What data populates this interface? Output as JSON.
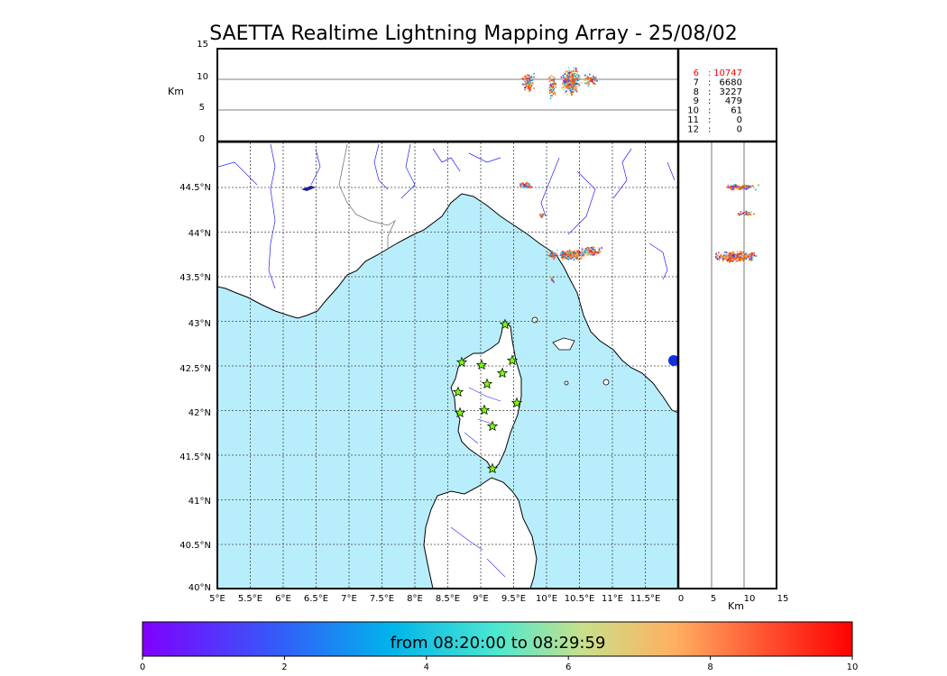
{
  "title": "SAETTA Realtime Lightning Mapping Array - 25/08/02",
  "top_panel": {
    "unit_label": "Km",
    "ticks": [
      "15",
      "10",
      "5",
      "0"
    ]
  },
  "stations": [
    {
      "count": "6",
      "value": "10747",
      "highlight": true
    },
    {
      "count": "7",
      "value": "6680",
      "highlight": false
    },
    {
      "count": "8",
      "value": "3227",
      "highlight": false
    },
    {
      "count": "9",
      "value": "479",
      "highlight": false
    },
    {
      "count": "10",
      "value": "61",
      "highlight": false
    },
    {
      "count": "11",
      "value": "0",
      "highlight": false
    },
    {
      "count": "12",
      "value": "0",
      "highlight": false
    }
  ],
  "map": {
    "lat_labels": [
      "44.5°N",
      "44°N",
      "43.5°N",
      "43°N",
      "42.5°N",
      "42°N",
      "41.5°N",
      "41°N",
      "40.5°N",
      "40°N"
    ],
    "lon_labels": [
      "5°E",
      "5.5°E",
      "6°E",
      "6.5°E",
      "7°E",
      "7.5°E",
      "8°E",
      "8.5°E",
      "9°E",
      "9.5°E",
      "10°E",
      "10.5°E",
      "11°E",
      "11.5°E"
    ],
    "sea_color": "#b8eefc",
    "river_color": "#2222ff",
    "station_color": "#7cfc00"
  },
  "side_panel": {
    "unit_label": "Km",
    "ticks": [
      "0",
      "5",
      "10",
      "15"
    ]
  },
  "colorbar": {
    "text": "from 08:20:00 to 08:29:59",
    "ticks": [
      "0",
      "2",
      "4",
      "6",
      "8",
      "10"
    ],
    "colors": [
      "#7f00ff",
      "#00b4eb",
      "#7fffd4",
      "#ff7f00",
      "#ff0000"
    ]
  }
}
